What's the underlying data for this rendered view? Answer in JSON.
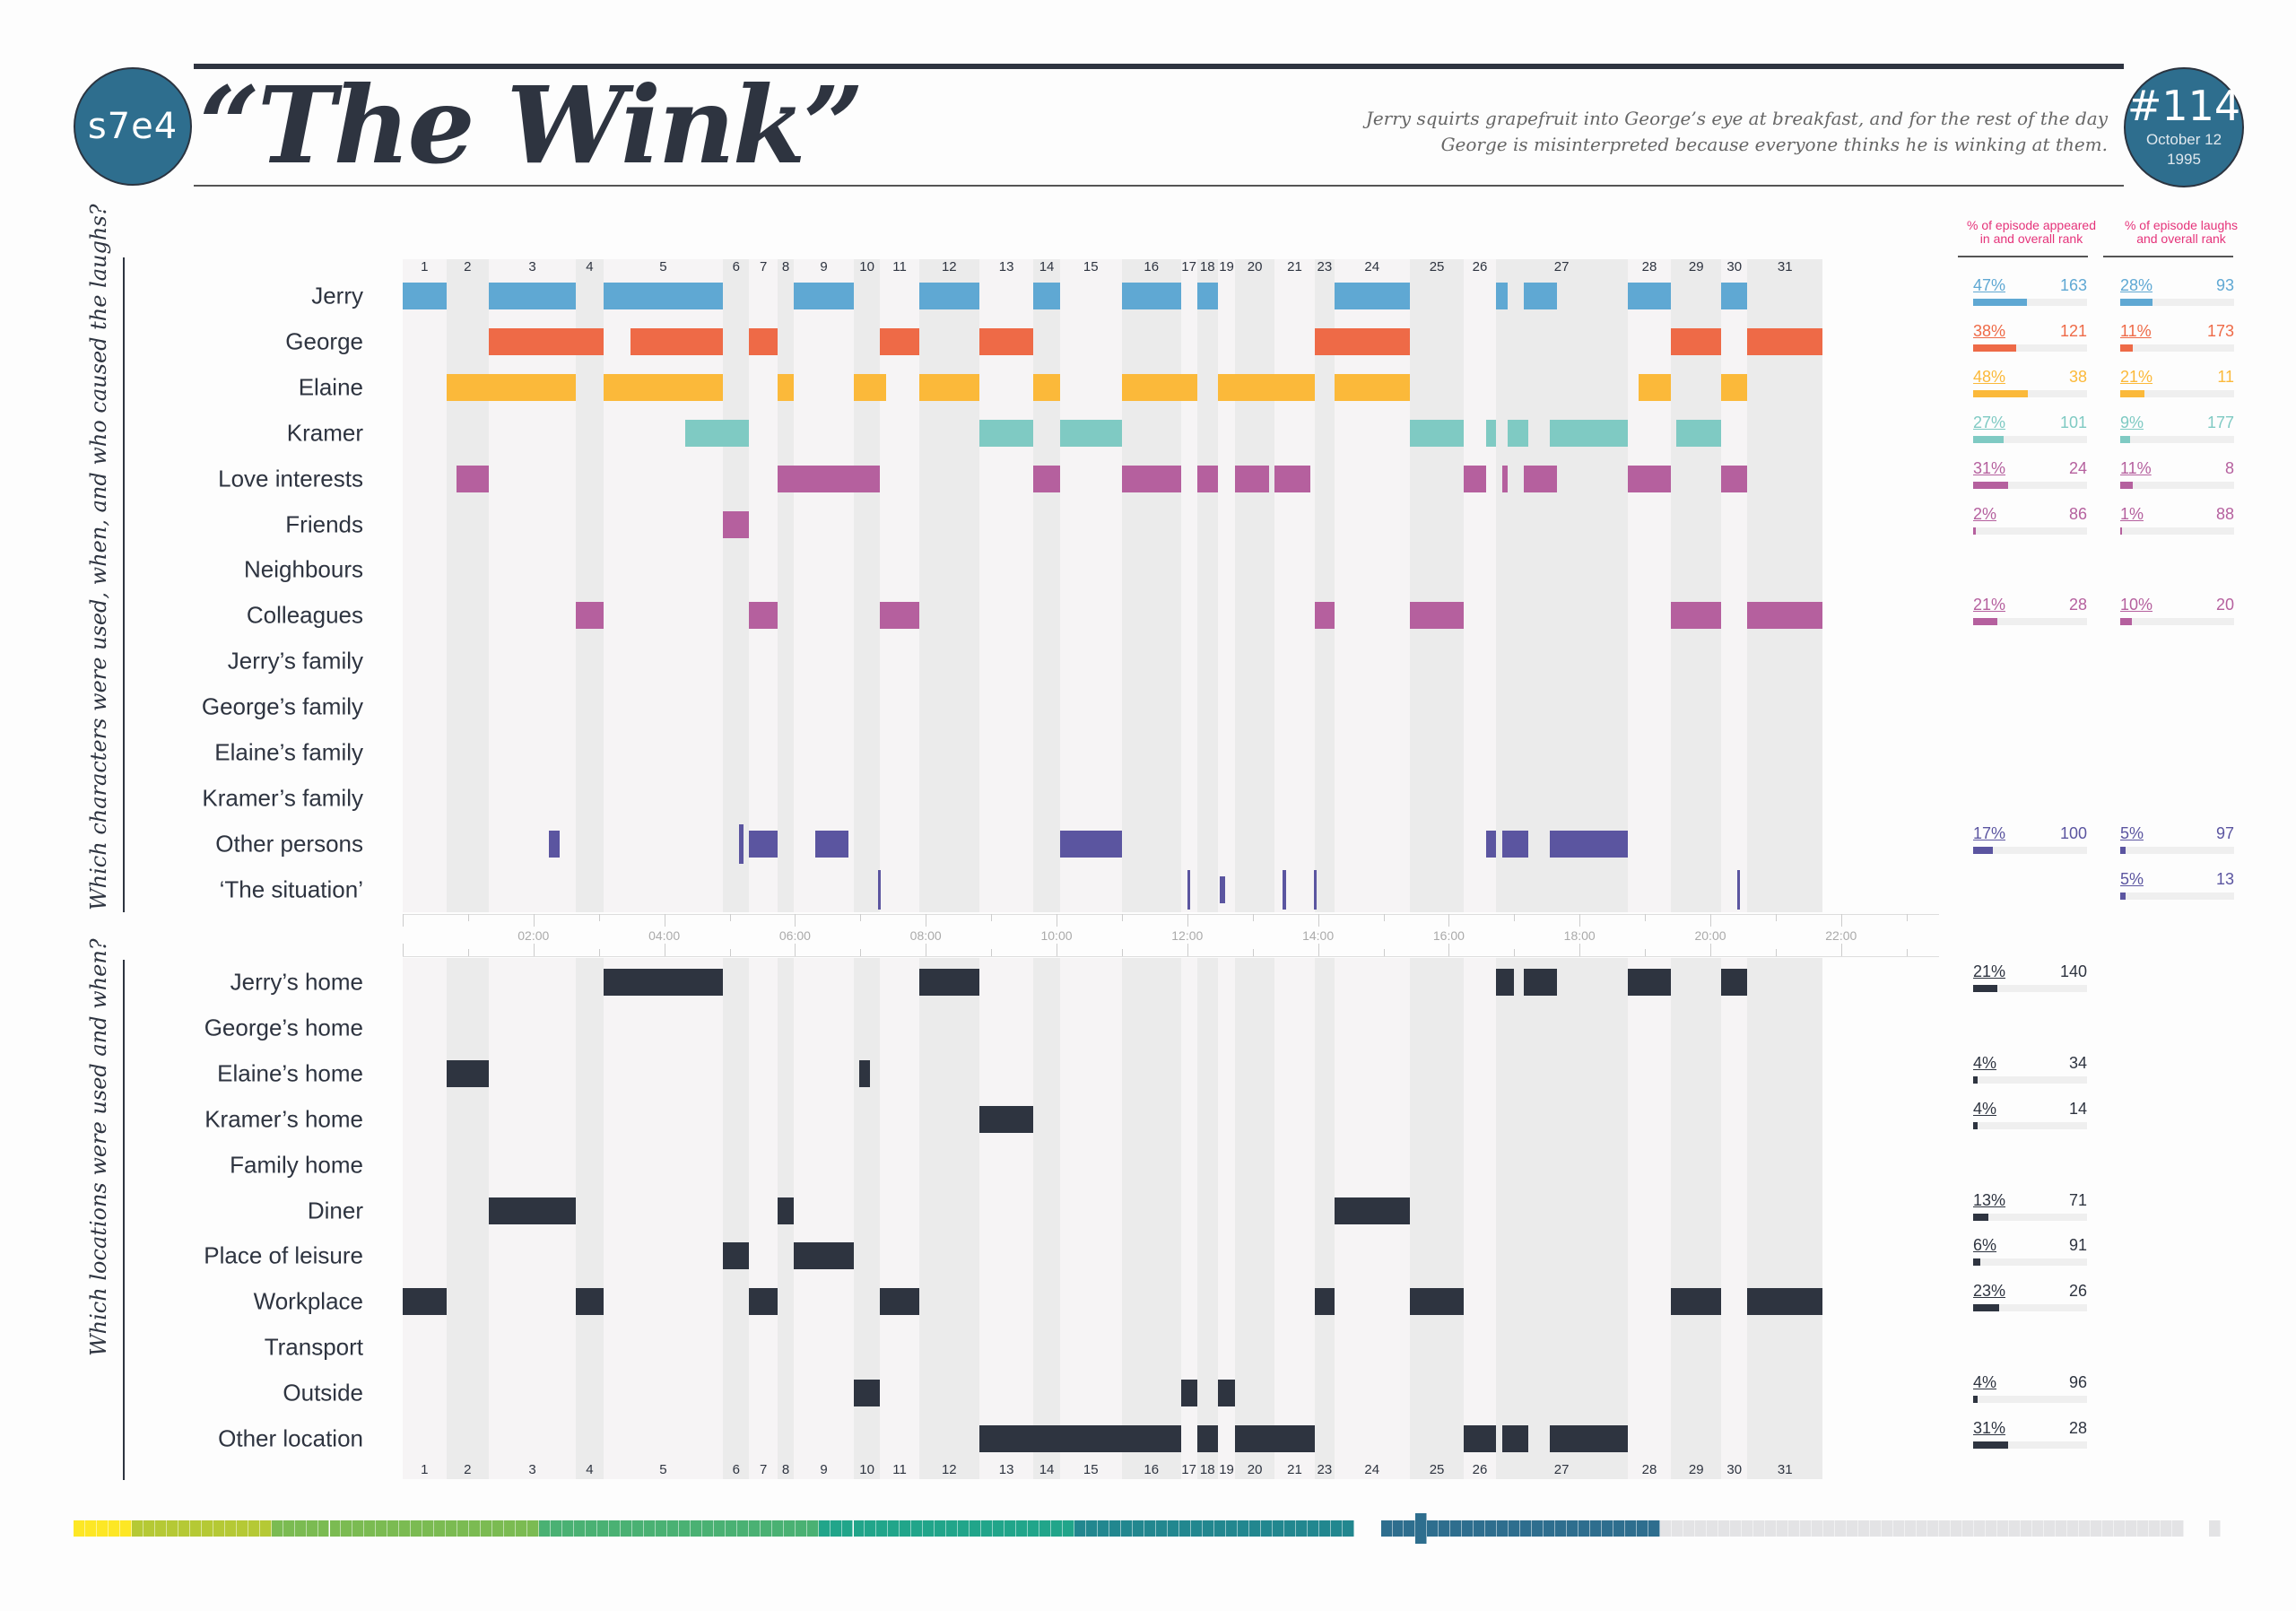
{
  "header": {
    "episode_code": "s7e4",
    "title": "“The Wink”",
    "description_line1": "Jerry squirts grapefruit into George’s eye at breakfast, and for the rest of the day",
    "description_line2": "George is misinterpreted because everyone thinks he is winking at them.",
    "episode_number": "#114",
    "air_date_line1": "October 12",
    "air_date_line2": "1995"
  },
  "sections": {
    "characters_title": "Which characters were used, when, and who caused the laughs?",
    "locations_title": "Which locations were used and when?"
  },
  "stats_headers": {
    "appeared": [
      "% of episode appeared",
      "in and overall rank"
    ],
    "laughs": [
      "% of episode laughs",
      "and overall rank"
    ]
  },
  "colors": {
    "jerry": "#5fa8d3",
    "george": "#ee6a47",
    "elaine": "#fbb93a",
    "kramer": "#7fcac3",
    "pink": "#b5609e",
    "purple": "#5b55a0",
    "location": "#2e3440",
    "scene_light": "#f6f4f5",
    "scene_dark": "#ebebeb",
    "accent": "#e5337a"
  },
  "chart_data": {
    "type": "timeline",
    "x_axis": {
      "range": [
        "0:00",
        "23:30"
      ],
      "tick_labels": [
        "02:00",
        "04:00",
        "06:00",
        "08:00",
        "10:00",
        "12:00",
        "14:00",
        "16:00",
        "18:00",
        "20:00",
        "22:00"
      ]
    },
    "scenes": [
      {
        "label": "1",
        "start": "0:00",
        "end": "0:40"
      },
      {
        "label": "2",
        "start": "0:40",
        "end": "1:19"
      },
      {
        "label": "3",
        "start": "1:19",
        "end": "2:39"
      },
      {
        "label": "4",
        "start": "2:39",
        "end": "3:04"
      },
      {
        "label": "5",
        "start": "3:04",
        "end": "4:54"
      },
      {
        "label": "6",
        "start": "4:54",
        "end": "5:18"
      },
      {
        "label": "7",
        "start": "5:18",
        "end": "5:44"
      },
      {
        "label": "8",
        "start": "5:44",
        "end": "5:59"
      },
      {
        "label": "9",
        "start": "5:59",
        "end": "6:54"
      },
      {
        "label": "10",
        "start": "6:54",
        "end": "7:18"
      },
      {
        "label": "11",
        "start": "7:18",
        "end": "7:54"
      },
      {
        "label": "12",
        "start": "7:54",
        "end": "8:49"
      },
      {
        "label": "13",
        "start": "8:49",
        "end": "9:39"
      },
      {
        "label": "14",
        "start": "9:39",
        "end": "10:03"
      },
      {
        "label": "15",
        "start": "10:03",
        "end": "11:00"
      },
      {
        "label": "16",
        "start": "11:00",
        "end": "11:54"
      },
      {
        "label": "17",
        "start": "11:54",
        "end": "12:09"
      },
      {
        "label": "18",
        "start": "12:09",
        "end": "12:28"
      },
      {
        "label": "19",
        "start": "12:28",
        "end": "12:44"
      },
      {
        "label": "20",
        "start": "12:44",
        "end": "13:20"
      },
      {
        "label": "21",
        "start": "13:20",
        "end": "13:57"
      },
      {
        "label": "23",
        "start": "13:57",
        "end": "14:15"
      },
      {
        "label": "24",
        "start": "14:15",
        "end": "15:24"
      },
      {
        "label": "25",
        "start": "15:24",
        "end": "16:14"
      },
      {
        "label": "26",
        "start": "16:14",
        "end": "16:43"
      },
      {
        "label": "27",
        "start": "16:43",
        "end": "18:44"
      },
      {
        "label": "28",
        "start": "18:44",
        "end": "19:24"
      },
      {
        "label": "29",
        "start": "19:24",
        "end": "20:10"
      },
      {
        "label": "30",
        "start": "20:10",
        "end": "20:34"
      },
      {
        "label": "31",
        "start": "20:34",
        "end": "21:43"
      }
    ],
    "characters": [
      {
        "name": "Jerry",
        "color": "jerry",
        "appeared_pct": 47,
        "appeared_rank": 163,
        "laughs_pct": 28,
        "laughs_rank": 93,
        "segments": [
          [
            "0:00",
            "0:40"
          ],
          [
            "1:19",
            "2:39"
          ],
          [
            "3:04",
            "4:54"
          ],
          [
            "5:59",
            "6:54"
          ],
          [
            "7:54",
            "8:49"
          ],
          [
            "9:39",
            "10:03"
          ],
          [
            "11:00",
            "11:54"
          ],
          [
            "12:09",
            "12:28"
          ],
          [
            "14:15",
            "15:24"
          ],
          [
            "16:43",
            "16:54"
          ],
          [
            "17:09",
            "17:39"
          ],
          [
            "18:44",
            "19:24"
          ],
          [
            "20:10",
            "20:34"
          ]
        ]
      },
      {
        "name": "George",
        "color": "george",
        "appeared_pct": 38,
        "appeared_rank": 121,
        "laughs_pct": 11,
        "laughs_rank": 173,
        "segments": [
          [
            "1:19",
            "3:04"
          ],
          [
            "3:29",
            "4:54"
          ],
          [
            "5:18",
            "5:44"
          ],
          [
            "7:18",
            "7:54"
          ],
          [
            "8:49",
            "9:39"
          ],
          [
            "13:57",
            "15:24"
          ],
          [
            "19:24",
            "20:10"
          ],
          [
            "20:34",
            "21:43"
          ]
        ]
      },
      {
        "name": "Elaine",
        "color": "elaine",
        "appeared_pct": 48,
        "appeared_rank": 38,
        "laughs_pct": 21,
        "laughs_rank": 11,
        "segments": [
          [
            "0:40",
            "2:39"
          ],
          [
            "3:04",
            "4:54"
          ],
          [
            "5:44",
            "5:59"
          ],
          [
            "6:54",
            "7:24"
          ],
          [
            "7:54",
            "8:49"
          ],
          [
            "9:39",
            "10:03"
          ],
          [
            "11:00",
            "12:09"
          ],
          [
            "12:28",
            "13:57"
          ],
          [
            "14:15",
            "15:24"
          ],
          [
            "18:54",
            "19:24"
          ],
          [
            "20:10",
            "20:34"
          ]
        ]
      },
      {
        "name": "Kramer",
        "color": "kramer",
        "appeared_pct": 27,
        "appeared_rank": 101,
        "laughs_pct": 9,
        "laughs_rank": 177,
        "segments": [
          [
            "4:19",
            "5:18"
          ],
          [
            "8:49",
            "9:39"
          ],
          [
            "10:03",
            "11:00"
          ],
          [
            "15:24",
            "16:14"
          ],
          [
            "16:34",
            "16:43"
          ],
          [
            "16:54",
            "17:13"
          ],
          [
            "17:33",
            "18:44"
          ],
          [
            "19:29",
            "20:10"
          ]
        ]
      },
      {
        "name": "Love interests",
        "color": "pink",
        "appeared_pct": 31,
        "appeared_rank": 24,
        "laughs_pct": 11,
        "laughs_rank": 8,
        "segments": [
          [
            "0:49",
            "1:19"
          ],
          [
            "5:44",
            "7:18"
          ],
          [
            "9:39",
            "10:03"
          ],
          [
            "11:00",
            "11:54"
          ],
          [
            "12:09",
            "12:28"
          ],
          [
            "12:44",
            "13:15"
          ],
          [
            "13:20",
            "13:53"
          ],
          [
            "16:14",
            "16:34"
          ],
          [
            "16:49",
            "16:54"
          ],
          [
            "17:09",
            "17:39"
          ],
          [
            "18:44",
            "19:24"
          ],
          [
            "20:10",
            "20:34"
          ]
        ]
      },
      {
        "name": "Friends",
        "color": "pink",
        "appeared_pct": 2,
        "appeared_rank": 86,
        "laughs_pct": 1,
        "laughs_rank": 88,
        "segments": [
          [
            "4:54",
            "5:18"
          ]
        ]
      },
      {
        "name": "Neighbours",
        "color": "pink",
        "segments": []
      },
      {
        "name": "Colleagues",
        "color": "pink",
        "appeared_pct": 21,
        "appeared_rank": 28,
        "laughs_pct": 10,
        "laughs_rank": 20,
        "segments": [
          [
            "2:39",
            "3:04"
          ],
          [
            "5:18",
            "5:44"
          ],
          [
            "7:18",
            "7:54"
          ],
          [
            "13:57",
            "14:15"
          ],
          [
            "15:24",
            "16:14"
          ],
          [
            "19:24",
            "20:10"
          ],
          [
            "20:34",
            "21:43"
          ]
        ]
      },
      {
        "name": "Jerry’s family",
        "color": "pink",
        "segments": []
      },
      {
        "name": "George’s family",
        "color": "pink",
        "segments": []
      },
      {
        "name": "Elaine’s family",
        "color": "pink",
        "segments": []
      },
      {
        "name": "Kramer’s family",
        "color": "pink",
        "segments": []
      },
      {
        "name": "Other persons",
        "color": "purple",
        "appeared_pct": 17,
        "appeared_rank": 100,
        "laughs_pct": 5,
        "laughs_rank": 97,
        "segments": [
          [
            "2:14",
            "2:24"
          ],
          [
            "5:09",
            "5:13"
          ],
          [
            "5:18",
            "5:44"
          ],
          [
            "6:19",
            "6:49"
          ],
          [
            "10:03",
            "11:00"
          ],
          [
            "16:34",
            "16:43"
          ],
          [
            "16:49",
            "17:13"
          ],
          [
            "17:33",
            "18:44"
          ]
        ]
      },
      {
        "name": "‘The situation’",
        "color": "purple",
        "laughs_pct": 5,
        "laughs_rank": 13,
        "segments": [
          [
            "7:16",
            "7:18"
          ],
          [
            "12:00",
            "12:02"
          ],
          [
            "12:30",
            "12:35"
          ],
          [
            "13:27",
            "13:31"
          ],
          [
            "13:56",
            "13:58"
          ],
          [
            "20:25",
            "20:27"
          ]
        ]
      }
    ],
    "locations": [
      {
        "name": "Jerry’s home",
        "appeared_pct": 21,
        "appeared_rank": 140,
        "segments": [
          [
            "3:04",
            "4:54"
          ],
          [
            "7:54",
            "8:49"
          ],
          [
            "16:43",
            "17:00"
          ],
          [
            "17:09",
            "17:39"
          ],
          [
            "18:44",
            "19:24"
          ],
          [
            "20:10",
            "20:34"
          ]
        ]
      },
      {
        "name": "George’s home",
        "segments": []
      },
      {
        "name": "Elaine’s home",
        "appeared_pct": 4,
        "appeared_rank": 34,
        "segments": [
          [
            "0:40",
            "1:19"
          ],
          [
            "6:59",
            "7:09"
          ]
        ]
      },
      {
        "name": "Kramer’s home",
        "appeared_pct": 4,
        "appeared_rank": 14,
        "segments": [
          [
            "8:49",
            "9:39"
          ]
        ]
      },
      {
        "name": "Family home",
        "segments": []
      },
      {
        "name": "Diner",
        "appeared_pct": 13,
        "appeared_rank": 71,
        "segments": [
          [
            "1:19",
            "2:39"
          ],
          [
            "5:44",
            "5:59"
          ],
          [
            "14:15",
            "15:24"
          ]
        ]
      },
      {
        "name": "Place of leisure",
        "appeared_pct": 6,
        "appeared_rank": 91,
        "segments": [
          [
            "4:54",
            "5:18"
          ],
          [
            "5:59",
            "6:54"
          ]
        ]
      },
      {
        "name": "Workplace",
        "appeared_pct": 23,
        "appeared_rank": 26,
        "segments": [
          [
            "0:00",
            "0:40"
          ],
          [
            "2:39",
            "3:04"
          ],
          [
            "5:18",
            "5:44"
          ],
          [
            "7:18",
            "7:54"
          ],
          [
            "13:57",
            "14:15"
          ],
          [
            "15:24",
            "16:14"
          ],
          [
            "19:24",
            "20:10"
          ],
          [
            "20:34",
            "21:43"
          ]
        ]
      },
      {
        "name": "Transport",
        "segments": []
      },
      {
        "name": "Outside",
        "appeared_pct": 4,
        "appeared_rank": 96,
        "segments": [
          [
            "6:54",
            "7:18"
          ],
          [
            "11:54",
            "12:09"
          ],
          [
            "12:28",
            "12:44"
          ]
        ]
      },
      {
        "name": "Other location",
        "appeared_pct": 31,
        "appeared_rank": 28,
        "segments": [
          [
            "8:49",
            "11:54"
          ],
          [
            "12:09",
            "12:28"
          ],
          [
            "12:44",
            "13:57"
          ],
          [
            "16:14",
            "16:43"
          ],
          [
            "16:49",
            "17:13"
          ],
          [
            "17:33",
            "18:44"
          ]
        ]
      }
    ]
  },
  "episode_strip": {
    "current_episode": 114,
    "season_episode_counts": [
      5,
      12,
      23,
      24,
      22,
      24,
      24,
      22,
      24
    ],
    "season_colors": [
      "#fde725",
      "#b5c935",
      "#7bbb52",
      "#4ab173",
      "#21a58a",
      "#22878f",
      "#2e6e8e",
      "#e3e3e5",
      "#e3e3e5"
    ]
  }
}
